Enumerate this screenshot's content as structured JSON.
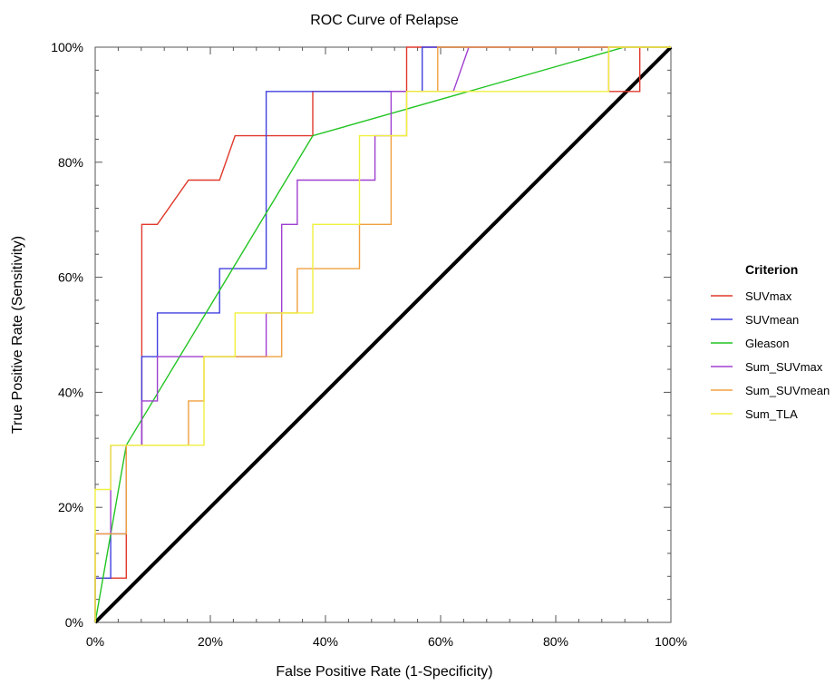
{
  "chart_data": {
    "type": "line",
    "title": "ROC Curve of Relapse",
    "xlabel": "False Positive Rate (1-Specificity)",
    "ylabel": "True Positive Rate (Sensitivity)",
    "xlim": [
      0,
      1
    ],
    "ylim": [
      0,
      1
    ],
    "x_ticks": [
      "0%",
      "20%",
      "40%",
      "60%",
      "80%",
      "100%"
    ],
    "y_ticks": [
      "0%",
      "20%",
      "40%",
      "60%",
      "80%",
      "100%"
    ],
    "grid": false,
    "legend_title": "Criterion",
    "legend_position": "right",
    "series": [
      {
        "name": "SUVmax",
        "color": "#e0392b",
        "x": [
          0.0,
          0.0,
          0.054,
          0.054,
          0.081,
          0.081,
          0.108,
          0.162,
          0.216,
          0.243,
          0.378,
          0.378,
          0.514,
          0.514,
          0.541,
          0.541,
          0.892,
          0.892,
          0.946,
          0.946,
          1.0
        ],
        "y": [
          0.0,
          0.077,
          0.077,
          0.308,
          0.308,
          0.692,
          0.692,
          0.769,
          0.769,
          0.846,
          0.846,
          0.923,
          0.923,
          0.923,
          0.923,
          1.0,
          1.0,
          0.923,
          0.923,
          1.0,
          1.0
        ]
      },
      {
        "name": "SUVmean",
        "color": "#4040e0",
        "x": [
          0.0,
          0.0,
          0.027,
          0.027,
          0.054,
          0.054,
          0.081,
          0.081,
          0.108,
          0.108,
          0.216,
          0.216,
          0.297,
          0.297,
          0.514,
          0.514,
          0.568,
          0.568,
          1.0
        ],
        "y": [
          0.0,
          0.077,
          0.077,
          0.154,
          0.154,
          0.308,
          0.308,
          0.462,
          0.462,
          0.538,
          0.538,
          0.615,
          0.615,
          0.923,
          0.923,
          0.923,
          0.923,
          1.0,
          1.0
        ]
      },
      {
        "name": "Gleason",
        "color": "#22c422",
        "x": [
          0.0,
          0.054,
          0.378,
          0.919,
          1.0
        ],
        "y": [
          0.0,
          0.308,
          0.846,
          1.0,
          1.0
        ]
      },
      {
        "name": "Sum_SUVmax",
        "color": "#a040d0",
        "x": [
          0.0,
          0.0,
          0.027,
          0.027,
          0.081,
          0.081,
          0.108,
          0.108,
          0.297,
          0.297,
          0.324,
          0.324,
          0.351,
          0.351,
          0.486,
          0.486,
          0.514,
          0.514,
          0.541,
          0.541,
          0.622,
          0.649,
          1.0
        ],
        "y": [
          0.0,
          0.154,
          0.154,
          0.308,
          0.308,
          0.385,
          0.385,
          0.462,
          0.462,
          0.538,
          0.538,
          0.692,
          0.692,
          0.769,
          0.769,
          0.846,
          0.846,
          0.923,
          0.923,
          0.923,
          0.923,
          1.0,
          1.0
        ]
      },
      {
        "name": "Sum_SUVmean",
        "color": "#f0a040",
        "x": [
          0.0,
          0.0,
          0.054,
          0.054,
          0.162,
          0.162,
          0.189,
          0.189,
          0.297,
          0.297,
          0.324,
          0.324,
          0.351,
          0.351,
          0.459,
          0.459,
          0.514,
          0.514,
          0.541,
          0.541,
          0.595,
          0.595,
          1.0
        ],
        "y": [
          0.0,
          0.154,
          0.154,
          0.308,
          0.308,
          0.385,
          0.385,
          0.462,
          0.462,
          0.462,
          0.462,
          0.538,
          0.538,
          0.615,
          0.615,
          0.692,
          0.692,
          0.846,
          0.846,
          0.923,
          0.923,
          1.0,
          1.0
        ]
      },
      {
        "name": "Sum_TLA",
        "color": "#f0f040",
        "x": [
          0.0,
          0.0,
          0.027,
          0.027,
          0.189,
          0.189,
          0.243,
          0.243,
          0.378,
          0.378,
          0.459,
          0.459,
          0.541,
          0.541,
          0.892,
          0.892,
          1.0
        ],
        "y": [
          0.0,
          0.231,
          0.231,
          0.308,
          0.308,
          0.462,
          0.462,
          0.538,
          0.538,
          0.692,
          0.692,
          0.846,
          0.846,
          0.923,
          0.923,
          1.0,
          1.0
        ]
      }
    ],
    "reference_line": {
      "x": [
        0,
        1
      ],
      "y": [
        0,
        1
      ],
      "color": "#000000"
    }
  }
}
